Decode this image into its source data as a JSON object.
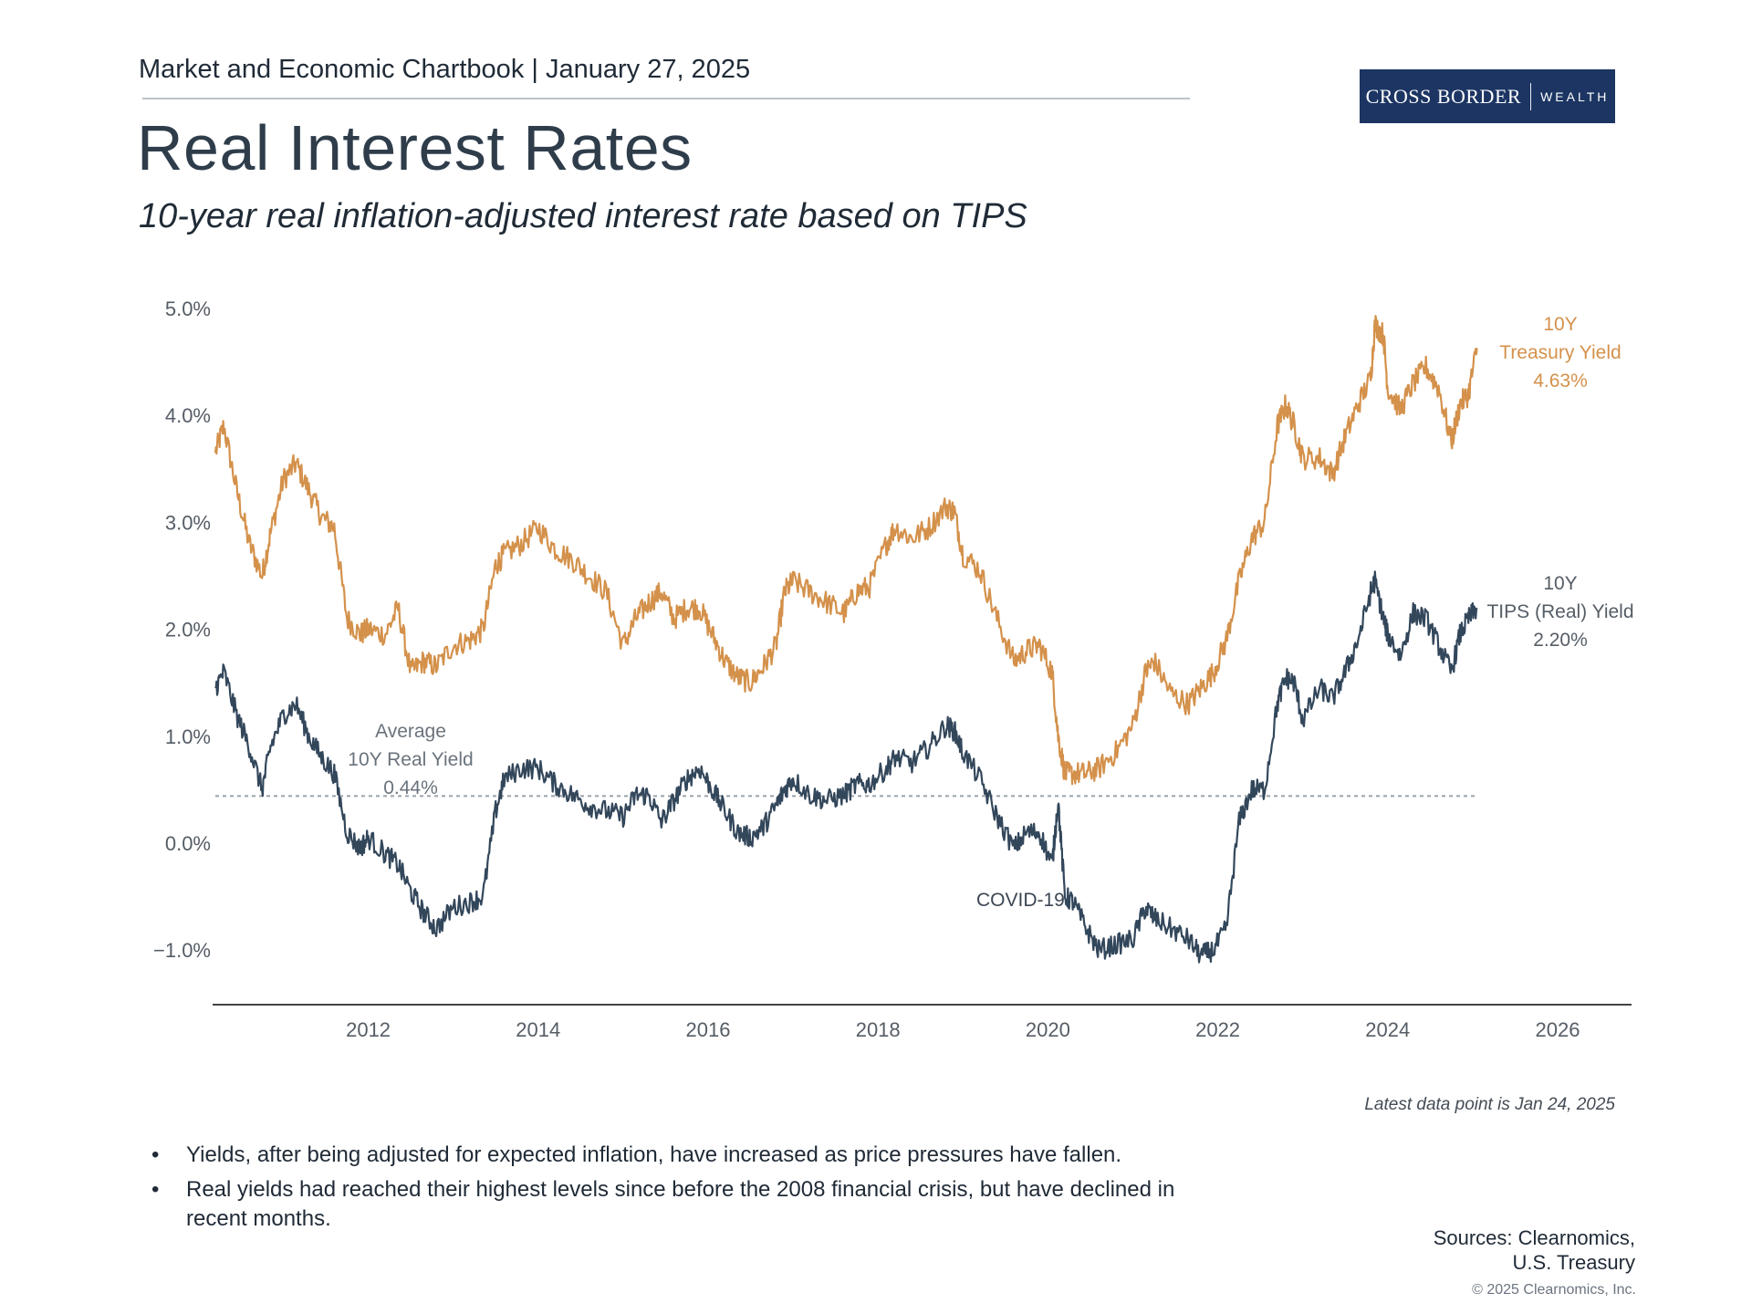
{
  "header": {
    "text": "Market and Economic Chartbook | January 27, 2025"
  },
  "logo": {
    "primary": "CROSS BORDER",
    "secondary": "WEALTH"
  },
  "title": "Real Interest Rates",
  "subtitle": "10-year real inflation-adjusted interest rate based on TIPS",
  "colors": {
    "treasury": "#d4914b",
    "tips": "#33475b",
    "average": "#9aa3ab",
    "axis": "#444444",
    "brand": "#1c3563"
  },
  "chart_data": {
    "type": "line",
    "title": "Real Interest Rates",
    "xlabel": "",
    "ylabel": "",
    "xlim": [
      2010.2,
      2027.0
    ],
    "ylim": [
      -1.5,
      5.2
    ],
    "x_ticks": [
      2012,
      2014,
      2016,
      2018,
      2020,
      2022,
      2024,
      2026
    ],
    "x_tick_labels": [
      "2012",
      "2014",
      "2016",
      "2018",
      "2020",
      "2022",
      "2024",
      "2026"
    ],
    "y_ticks": [
      5,
      4,
      3,
      2,
      1,
      0,
      -1
    ],
    "y_tick_labels": [
      "5.0%",
      "4.0%",
      "3.0%",
      "2.0%",
      "1.0%",
      "0.0%",
      "−1.0%"
    ],
    "grid": false,
    "series": [
      {
        "name": "10Y Treasury Yield",
        "label_lines": [
          "10Y",
          "Treasury Yield",
          "4.63%"
        ],
        "color_key": "treasury",
        "x": [
          2010.2,
          2010.3,
          2010.45,
          2010.6,
          2010.75,
          2010.85,
          2011.0,
          2011.15,
          2011.3,
          2011.45,
          2011.6,
          2011.75,
          2011.9,
          2012.0,
          2012.2,
          2012.35,
          2012.5,
          2012.65,
          2012.8,
          2013.0,
          2013.2,
          2013.35,
          2013.5,
          2013.6,
          2013.8,
          2014.0,
          2014.2,
          2014.4,
          2014.6,
          2014.8,
          2015.0,
          2015.15,
          2015.3,
          2015.45,
          2015.6,
          2015.75,
          2015.9,
          2016.05,
          2016.2,
          2016.35,
          2016.5,
          2016.65,
          2016.8,
          2016.9,
          2017.0,
          2017.2,
          2017.4,
          2017.6,
          2017.75,
          2017.9,
          2018.1,
          2018.2,
          2018.4,
          2018.6,
          2018.8,
          2018.9,
          2019.0,
          2019.2,
          2019.4,
          2019.6,
          2019.75,
          2019.9,
          2020.05,
          2020.12,
          2020.2,
          2020.3,
          2020.45,
          2020.6,
          2020.8,
          2021.0,
          2021.15,
          2021.25,
          2021.45,
          2021.65,
          2021.8,
          2021.95,
          2022.1,
          2022.25,
          2022.4,
          2022.55,
          2022.7,
          2022.8,
          2022.9,
          2023.0,
          2023.2,
          2023.35,
          2023.5,
          2023.65,
          2023.8,
          2023.85,
          2023.95,
          2024.0,
          2024.15,
          2024.3,
          2024.45,
          2024.6,
          2024.75,
          2024.85,
          2024.95,
          2025.05
        ],
        "y": [
          3.65,
          3.9,
          3.3,
          2.8,
          2.5,
          2.9,
          3.4,
          3.55,
          3.3,
          3.05,
          2.95,
          2.1,
          1.95,
          2.0,
          1.95,
          2.2,
          1.6,
          1.7,
          1.65,
          1.85,
          1.9,
          2.0,
          2.6,
          2.7,
          2.8,
          2.95,
          2.75,
          2.65,
          2.5,
          2.35,
          1.85,
          2.1,
          2.25,
          2.35,
          2.1,
          2.2,
          2.2,
          1.95,
          1.7,
          1.55,
          1.5,
          1.65,
          1.85,
          2.35,
          2.45,
          2.35,
          2.25,
          2.15,
          2.35,
          2.4,
          2.8,
          2.95,
          2.85,
          2.95,
          3.15,
          3.1,
          2.7,
          2.55,
          2.1,
          1.7,
          1.8,
          1.85,
          1.6,
          1.0,
          0.65,
          0.65,
          0.65,
          0.7,
          0.85,
          1.1,
          1.6,
          1.7,
          1.4,
          1.3,
          1.45,
          1.6,
          1.9,
          2.45,
          2.85,
          3.0,
          3.9,
          4.1,
          3.9,
          3.6,
          3.6,
          3.45,
          3.8,
          4.1,
          4.35,
          4.85,
          4.75,
          4.25,
          4.05,
          4.3,
          4.45,
          4.25,
          3.75,
          4.1,
          4.2,
          4.63
        ]
      },
      {
        "name": "10Y TIPS (Real) Yield",
        "label_lines": [
          "10Y",
          "TIPS (Real) Yield",
          "2.20%"
        ],
        "color_key": "tips",
        "x": [
          2010.2,
          2010.3,
          2010.45,
          2010.6,
          2010.75,
          2010.85,
          2011.0,
          2011.15,
          2011.3,
          2011.45,
          2011.6,
          2011.75,
          2011.9,
          2012.0,
          2012.2,
          2012.35,
          2012.5,
          2012.65,
          2012.8,
          2013.0,
          2013.2,
          2013.35,
          2013.5,
          2013.6,
          2013.8,
          2014.0,
          2014.2,
          2014.4,
          2014.6,
          2014.8,
          2015.0,
          2015.15,
          2015.3,
          2015.45,
          2015.6,
          2015.75,
          2015.9,
          2016.05,
          2016.2,
          2016.35,
          2016.5,
          2016.65,
          2016.8,
          2016.9,
          2017.0,
          2017.2,
          2017.4,
          2017.6,
          2017.75,
          2017.9,
          2018.1,
          2018.2,
          2018.4,
          2018.6,
          2018.8,
          2018.9,
          2019.0,
          2019.2,
          2019.4,
          2019.6,
          2019.75,
          2019.9,
          2020.05,
          2020.12,
          2020.2,
          2020.3,
          2020.45,
          2020.6,
          2020.8,
          2021.0,
          2021.15,
          2021.25,
          2021.45,
          2021.65,
          2021.8,
          2021.95,
          2022.1,
          2022.25,
          2022.4,
          2022.55,
          2022.7,
          2022.8,
          2022.9,
          2023.0,
          2023.2,
          2023.35,
          2023.5,
          2023.65,
          2023.8,
          2023.85,
          2023.95,
          2024.0,
          2024.15,
          2024.3,
          2024.45,
          2024.6,
          2024.75,
          2024.85,
          2024.95,
          2025.05
        ],
        "y": [
          1.45,
          1.6,
          1.2,
          0.9,
          0.5,
          0.9,
          1.2,
          1.3,
          1.0,
          0.8,
          0.65,
          0.1,
          -0.05,
          0.05,
          -0.1,
          -0.2,
          -0.45,
          -0.65,
          -0.8,
          -0.6,
          -0.55,
          -0.5,
          0.3,
          0.6,
          0.7,
          0.7,
          0.55,
          0.45,
          0.35,
          0.3,
          0.25,
          0.45,
          0.45,
          0.2,
          0.4,
          0.6,
          0.7,
          0.5,
          0.3,
          0.1,
          0.05,
          0.15,
          0.35,
          0.5,
          0.6,
          0.45,
          0.4,
          0.45,
          0.55,
          0.55,
          0.7,
          0.8,
          0.75,
          0.9,
          1.1,
          1.05,
          0.85,
          0.6,
          0.25,
          -0.05,
          0.1,
          0.1,
          -0.2,
          0.4,
          -0.5,
          -0.55,
          -0.8,
          -1.0,
          -0.95,
          -0.9,
          -0.6,
          -0.7,
          -0.8,
          -0.9,
          -1.05,
          -1.0,
          -0.8,
          0.2,
          0.5,
          0.5,
          1.3,
          1.55,
          1.5,
          1.15,
          1.45,
          1.35,
          1.6,
          1.9,
          2.35,
          2.45,
          2.1,
          1.95,
          1.75,
          2.15,
          2.1,
          1.85,
          1.6,
          1.95,
          2.1,
          2.2
        ]
      }
    ],
    "reference_lines": [
      {
        "name": "Average 10Y Real Yield",
        "value": 0.44,
        "x_range": [
          2010.2,
          2025.05
        ],
        "label_lines": [
          "Average",
          "10Y Real Yield",
          "0.44%"
        ]
      }
    ],
    "annotations": [
      {
        "text": "COVID-19",
        "x": 2019.75,
        "y": -0.5
      }
    ]
  },
  "note": "Latest data point is Jan 24, 2025",
  "bullets": [
    "Yields, after being adjusted for expected inflation, have increased as price pressures have fallen.",
    "Real yields had reached their highest levels since before the 2008 financial crisis, but have declined in recent months."
  ],
  "sources": {
    "line1": "Sources: Clearnomics,",
    "line2": "U.S. Treasury"
  },
  "copyright": "© 2025 Clearnomics, Inc."
}
